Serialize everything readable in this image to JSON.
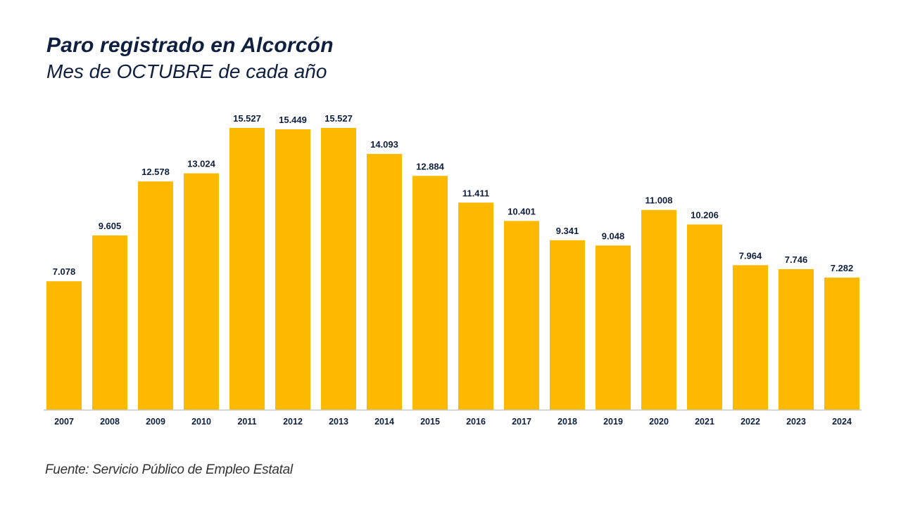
{
  "chart_data": {
    "type": "bar",
    "title": "Paro registrado en Alcorcón",
    "subtitle": "Mes de OCTUBRE de cada año",
    "categories": [
      "2007",
      "2008",
      "2009",
      "2010",
      "2011",
      "2012",
      "2013",
      "2014",
      "2015",
      "2016",
      "2017",
      "2018",
      "2019",
      "2020",
      "2021",
      "2022",
      "2023",
      "2024"
    ],
    "values": [
      7078,
      9605,
      12578,
      13024,
      15527,
      15449,
      15527,
      14093,
      12884,
      11411,
      10401,
      9341,
      9048,
      11008,
      10206,
      7964,
      7746,
      7282
    ],
    "data_labels": [
      "7.078",
      "9.605",
      "12.578",
      "13.024",
      "15.527",
      "15.449",
      "15.527",
      "14.093",
      "12.884",
      "11.411",
      "10.401",
      "9.341",
      "9.048",
      "11.008",
      "10.206",
      "7.964",
      "7.746",
      "7.282"
    ],
    "xlabel": "",
    "ylabel": "",
    "ylim": [
      0,
      15527
    ],
    "grid": false,
    "legend": "none",
    "bar_color": "#fcb900",
    "text_color": "#0e1f40",
    "source": "Fuente: Servicio Público de Empleo Estatal"
  }
}
